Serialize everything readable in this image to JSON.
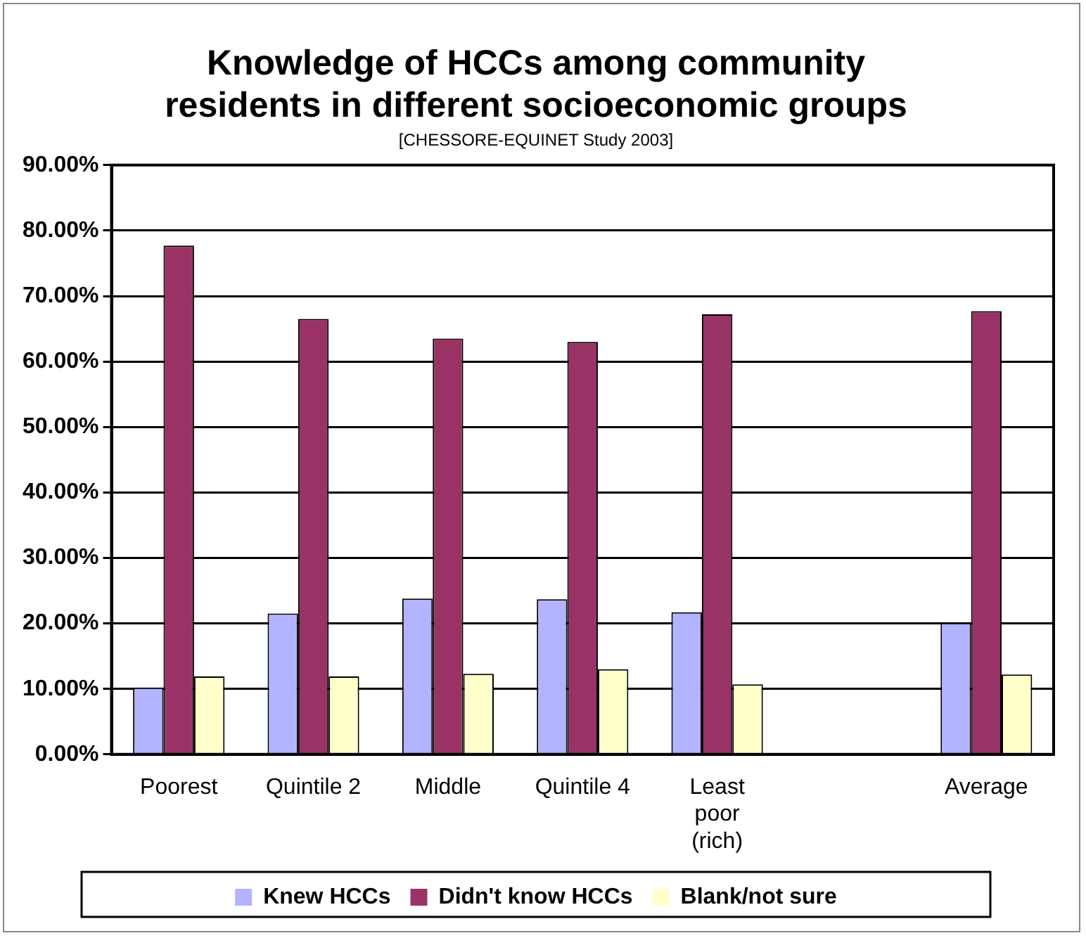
{
  "chart_data": {
    "type": "bar",
    "title": [
      "Knowledge of HCCs among community",
      "residents in different socioeconomic groups"
    ],
    "subtitle": "[CHESSORE-EQUINET Study 2003]",
    "categories": [
      "Poorest",
      "Quintile 2",
      "Middle",
      "Quintile 4",
      "Least poor (rich)",
      null,
      "Average"
    ],
    "series": [
      {
        "name": "Knew HCCs",
        "color": "#b3b3ff",
        "values": [
          10.2,
          21.5,
          23.8,
          23.7,
          21.7,
          null,
          20.1
        ]
      },
      {
        "name": "Didn't know HCCs",
        "color": "#993366",
        "values": [
          77.7,
          66.5,
          63.5,
          63.0,
          67.2,
          null,
          67.7
        ]
      },
      {
        "name": "Blank/not sure",
        "color": "#ffffcc",
        "values": [
          11.9,
          11.9,
          12.3,
          13.0,
          10.7,
          null,
          12.2
        ]
      }
    ],
    "ylim": [
      0,
      90
    ],
    "yticks": [
      {
        "value": 0,
        "label": "0.00%"
      },
      {
        "value": 10,
        "label": "10.00%"
      },
      {
        "value": 20,
        "label": "20.00%"
      },
      {
        "value": 30,
        "label": "30.00%"
      },
      {
        "value": 40,
        "label": "40.00%"
      },
      {
        "value": 50,
        "label": "50.00%"
      },
      {
        "value": 60,
        "label": "60.00%"
      },
      {
        "value": 70,
        "label": "70.00%"
      },
      {
        "value": 80,
        "label": "80.00%"
      },
      {
        "value": 90,
        "label": "90.00%"
      }
    ],
    "grid": "y",
    "legend": "bottom"
  }
}
